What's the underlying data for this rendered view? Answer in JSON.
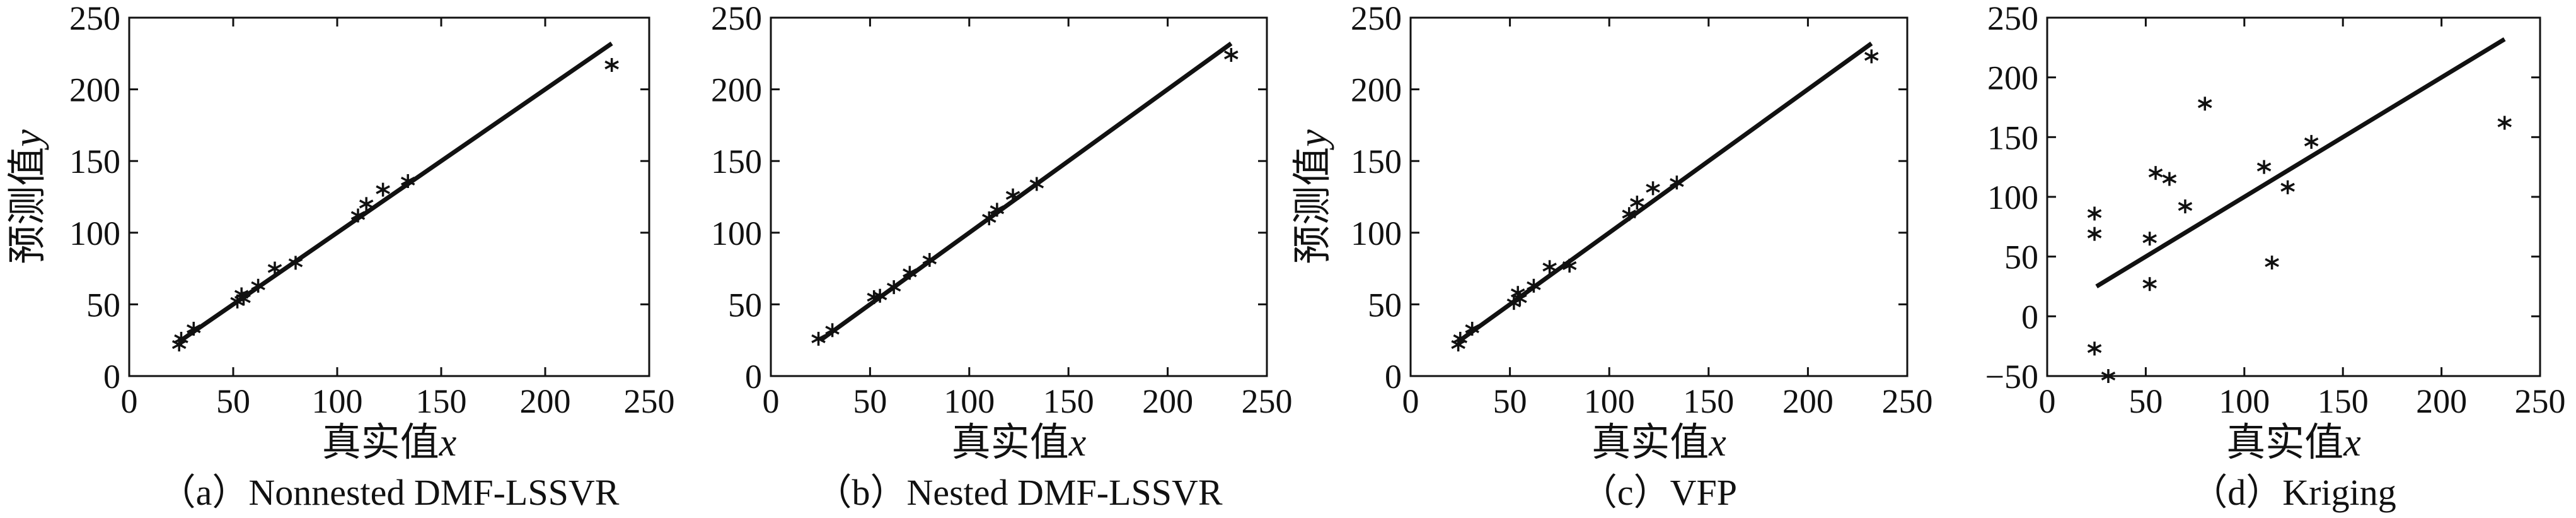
{
  "chart_data": [
    {
      "type": "scatter",
      "caption": "（a）Nonnested DMF-LSSVR",
      "xlabel": "真实值",
      "xlabel_var": "x",
      "ylabel": "预测值",
      "ylabel_var": "y",
      "xlim": [
        0,
        250
      ],
      "ylim": [
        0,
        250
      ],
      "xticks": [
        "0",
        "50",
        "100",
        "150",
        "200",
        "250"
      ],
      "yticks": [
        "0",
        "50",
        "100",
        "150",
        "200",
        "250"
      ],
      "reference_line": {
        "x": [
          25,
          232
        ],
        "y": [
          25,
          232
        ]
      },
      "points": [
        {
          "x": 24,
          "y": 22
        },
        {
          "x": 25,
          "y": 26
        },
        {
          "x": 31,
          "y": 33
        },
        {
          "x": 52,
          "y": 52
        },
        {
          "x": 54,
          "y": 57
        },
        {
          "x": 55,
          "y": 54
        },
        {
          "x": 62,
          "y": 63
        },
        {
          "x": 70,
          "y": 75
        },
        {
          "x": 80,
          "y": 79
        },
        {
          "x": 110,
          "y": 112
        },
        {
          "x": 114,
          "y": 120
        },
        {
          "x": 122,
          "y": 130
        },
        {
          "x": 134,
          "y": 136
        },
        {
          "x": 232,
          "y": 217
        }
      ]
    },
    {
      "type": "scatter",
      "caption": "（b）Nested DMF-LSSVR",
      "xlabel": "真实值",
      "xlabel_var": "x",
      "ylabel": "",
      "ylabel_var": "",
      "xlim": [
        0,
        250
      ],
      "ylim": [
        0,
        250
      ],
      "xticks": [
        "0",
        "50",
        "100",
        "150",
        "200",
        "250"
      ],
      "yticks": [
        "0",
        "50",
        "100",
        "150",
        "200",
        "250"
      ],
      "reference_line": {
        "x": [
          25,
          232
        ],
        "y": [
          25,
          232
        ]
      },
      "points": [
        {
          "x": 24,
          "y": 26
        },
        {
          "x": 31,
          "y": 32
        },
        {
          "x": 52,
          "y": 55
        },
        {
          "x": 55,
          "y": 56
        },
        {
          "x": 62,
          "y": 62
        },
        {
          "x": 70,
          "y": 72
        },
        {
          "x": 80,
          "y": 81
        },
        {
          "x": 110,
          "y": 110
        },
        {
          "x": 114,
          "y": 116
        },
        {
          "x": 122,
          "y": 126
        },
        {
          "x": 134,
          "y": 134
        },
        {
          "x": 232,
          "y": 224
        }
      ]
    },
    {
      "type": "scatter",
      "caption": "（c）VFP",
      "xlabel": "真实值",
      "xlabel_var": "x",
      "ylabel": "预测值",
      "ylabel_var": "y",
      "xlim": [
        0,
        250
      ],
      "ylim": [
        0,
        250
      ],
      "xticks": [
        "0",
        "50",
        "100",
        "150",
        "200",
        "250"
      ],
      "yticks": [
        "0",
        "50",
        "100",
        "150",
        "200",
        "250"
      ],
      "reference_line": {
        "x": [
          25,
          232
        ],
        "y": [
          25,
          232
        ]
      },
      "points": [
        {
          "x": 24,
          "y": 22
        },
        {
          "x": 25,
          "y": 26
        },
        {
          "x": 31,
          "y": 33
        },
        {
          "x": 52,
          "y": 51
        },
        {
          "x": 54,
          "y": 58
        },
        {
          "x": 55,
          "y": 54
        },
        {
          "x": 62,
          "y": 63
        },
        {
          "x": 70,
          "y": 76
        },
        {
          "x": 80,
          "y": 77
        },
        {
          "x": 110,
          "y": 113
        },
        {
          "x": 114,
          "y": 121
        },
        {
          "x": 122,
          "y": 131
        },
        {
          "x": 134,
          "y": 135
        },
        {
          "x": 232,
          "y": 223
        }
      ]
    },
    {
      "type": "scatter",
      "caption": "（d）Kriging",
      "xlabel": "真实值",
      "xlabel_var": "x",
      "ylabel": "",
      "ylabel_var": "",
      "xlim": [
        0,
        250
      ],
      "ylim": [
        -50,
        250
      ],
      "xticks": [
        "0",
        "50",
        "100",
        "150",
        "200",
        "250"
      ],
      "yticks": [
        "−50",
        "0",
        "50",
        "100",
        "150",
        "200",
        "250"
      ],
      "reference_line": {
        "x": [
          25,
          232
        ],
        "y": [
          25,
          232
        ]
      },
      "points": [
        {
          "x": 24,
          "y": 86
        },
        {
          "x": 24,
          "y": 69
        },
        {
          "x": 24,
          "y": -27
        },
        {
          "x": 31,
          "y": -50
        },
        {
          "x": 52,
          "y": 65
        },
        {
          "x": 52,
          "y": 27
        },
        {
          "x": 55,
          "y": 120
        },
        {
          "x": 62,
          "y": 115
        },
        {
          "x": 70,
          "y": 92
        },
        {
          "x": 80,
          "y": 178
        },
        {
          "x": 110,
          "y": 125
        },
        {
          "x": 114,
          "y": 45
        },
        {
          "x": 122,
          "y": 108
        },
        {
          "x": 134,
          "y": 146
        },
        {
          "x": 232,
          "y": 162
        }
      ]
    }
  ]
}
